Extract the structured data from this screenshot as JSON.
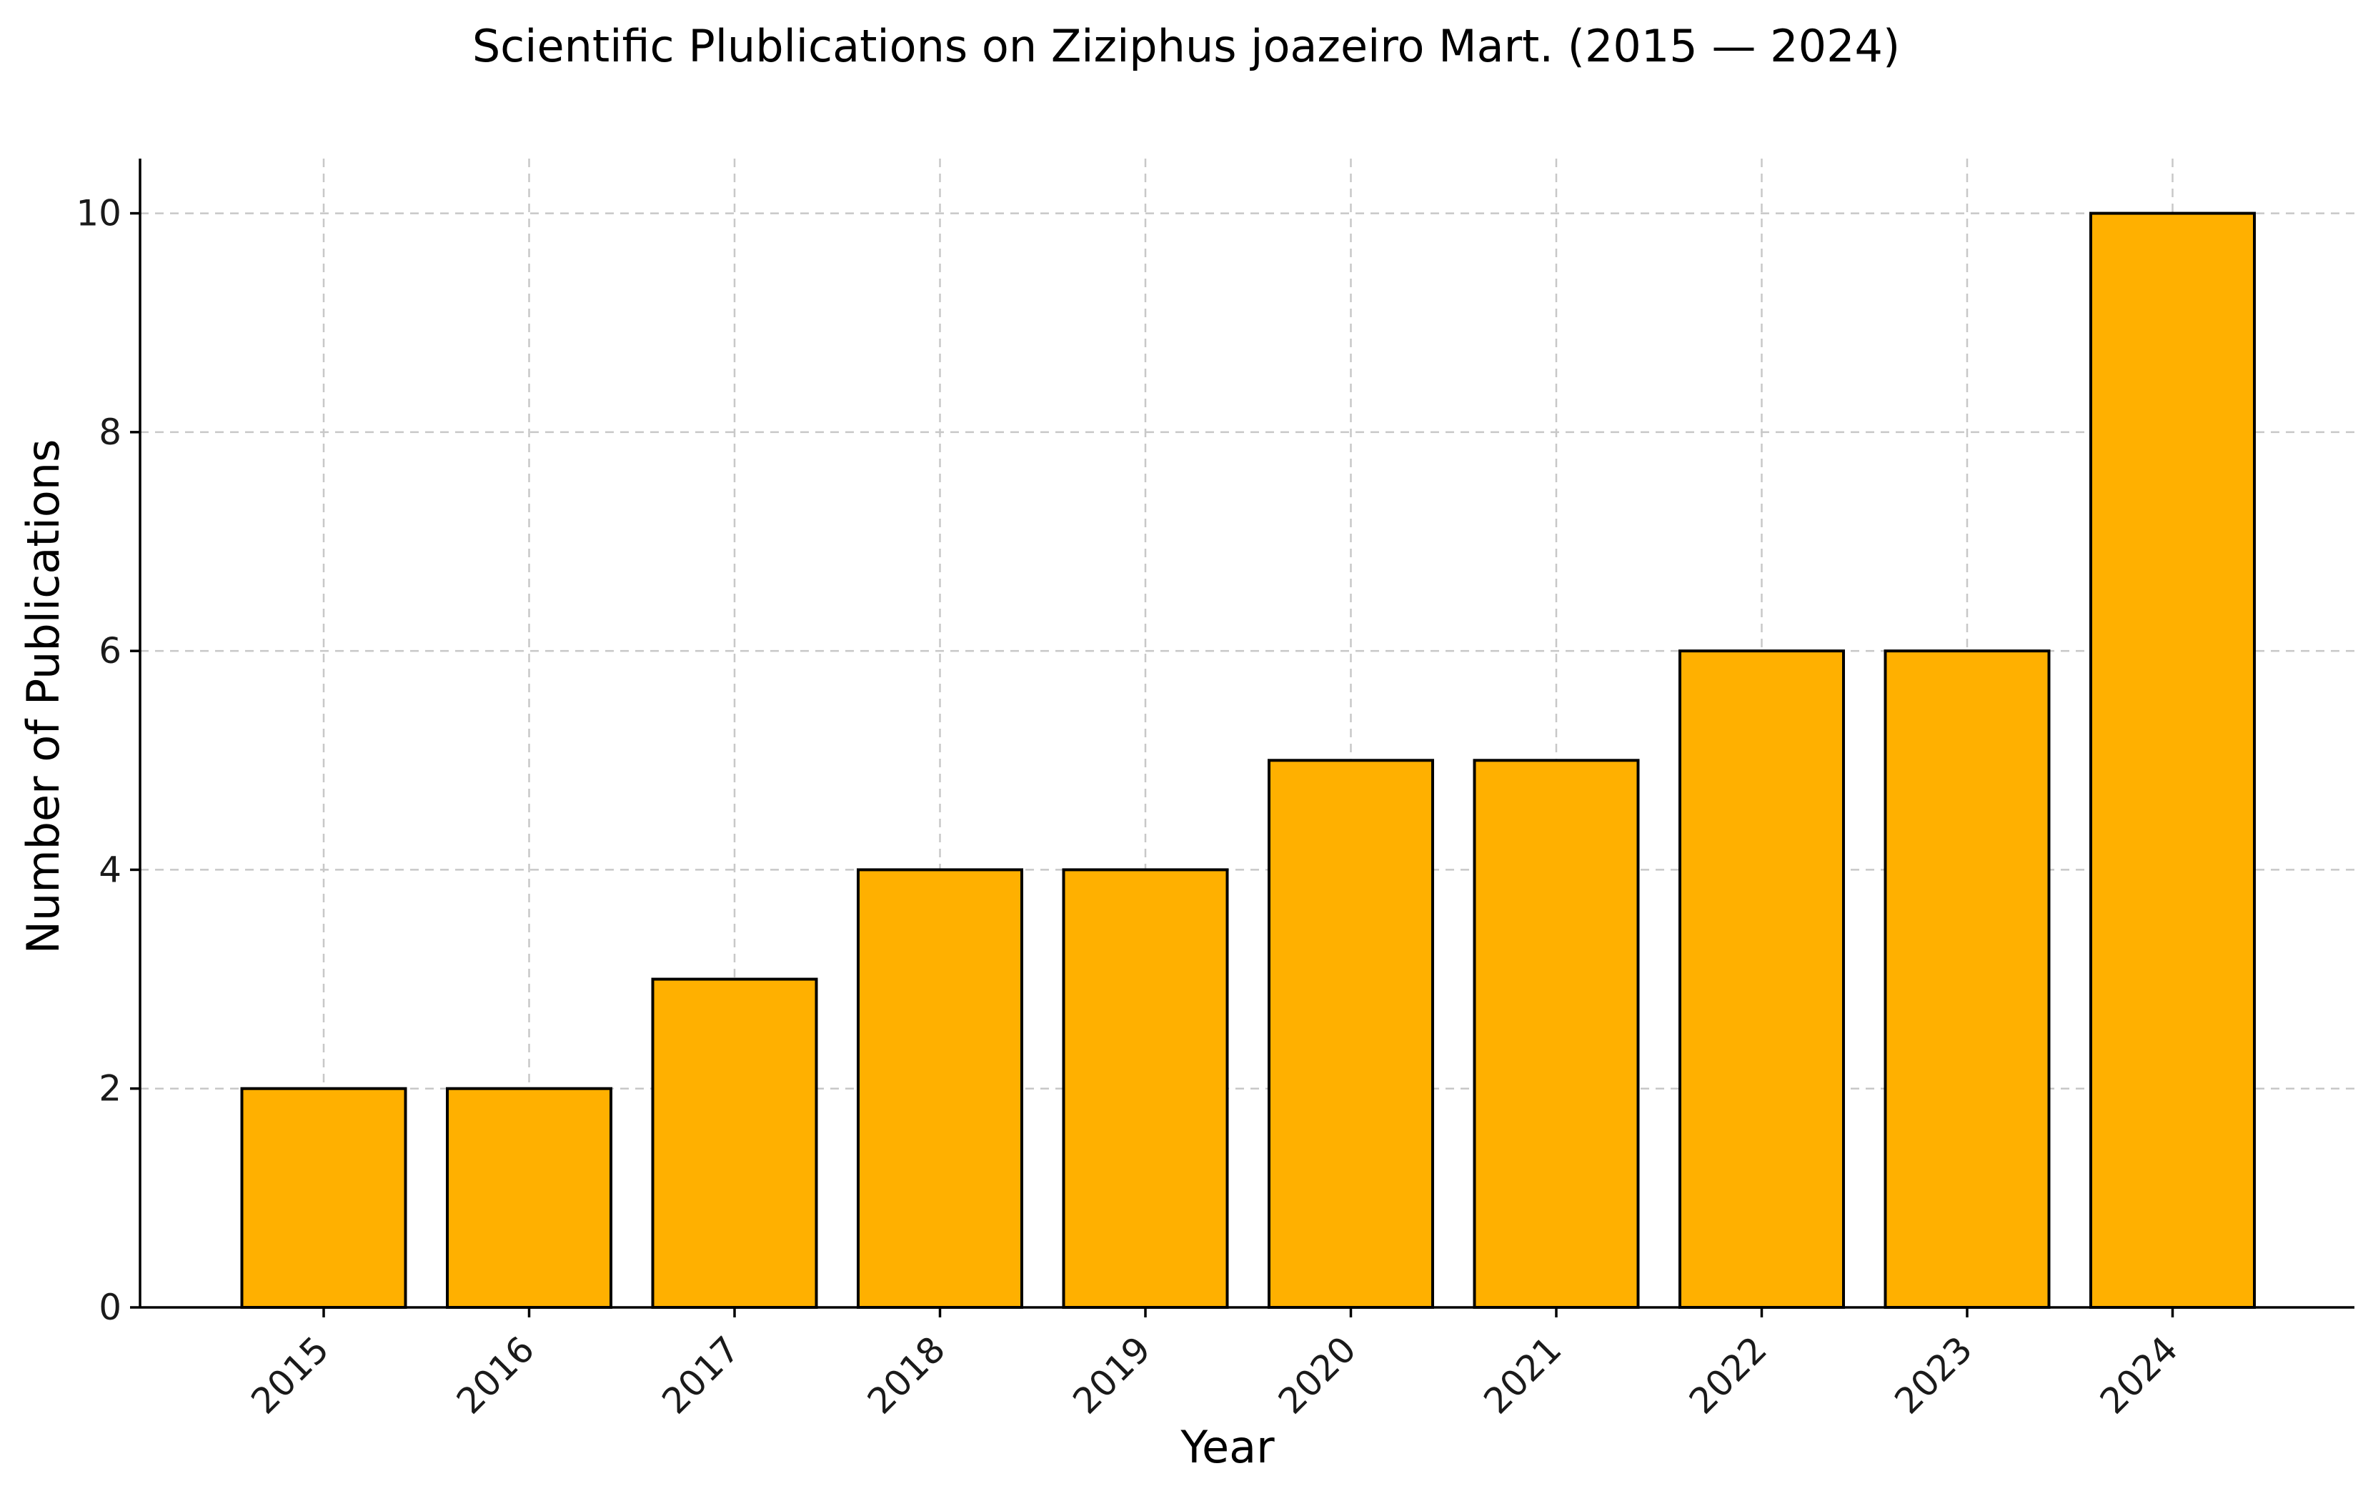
{
  "chart_data": {
    "type": "bar",
    "title": "Scientific Plublications on Ziziphus joazeiro Mart. (2015 — 2024)",
    "xlabel": "Year",
    "ylabel": "Number of Publications",
    "categories": [
      "2015",
      "2016",
      "2017",
      "2018",
      "2019",
      "2020",
      "2021",
      "2022",
      "2023",
      "2024"
    ],
    "values": [
      2,
      2,
      3,
      4,
      4,
      5,
      5,
      6,
      6,
      10
    ],
    "ylim": [
      0,
      10.5
    ],
    "yticks": [
      0,
      2,
      4,
      6,
      8,
      10
    ],
    "grid": true,
    "legend": "none",
    "bar_color": "#FFB000",
    "edge_color": "#000000"
  }
}
